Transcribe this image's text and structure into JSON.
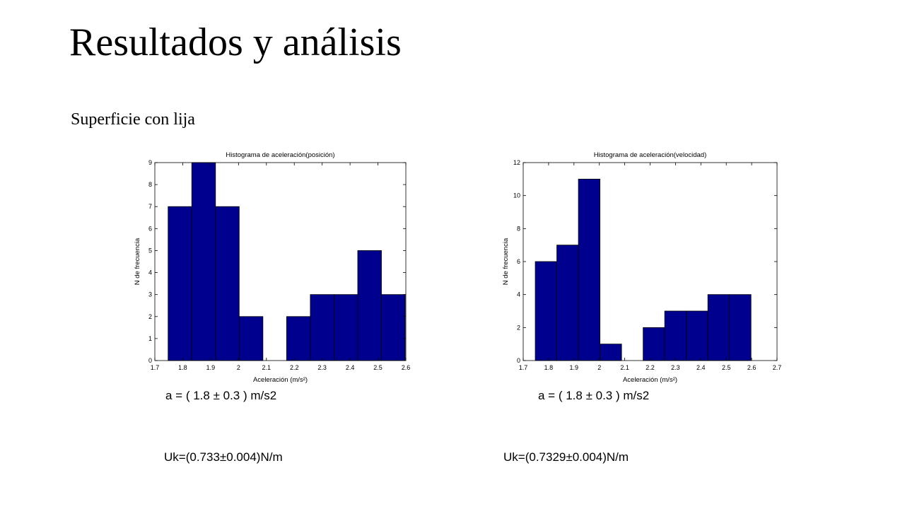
{
  "slide": {
    "title": "Resultados y análisis",
    "subtitle": "Superficie con lija"
  },
  "notes": {
    "accel_left": "a = ( 1.8 ± 0.3 ) m/s2",
    "accel_right": "a = ( 1.8 ± 0.3 ) m/s2",
    "uk_left": "Uk=(0.733±0.004)N/m",
    "uk_right": "Uk=(0.7329±0.004)N/m"
  },
  "colors": {
    "bar_fill": "#00008f",
    "bar_edge": "#000000"
  },
  "chart_data": [
    {
      "type": "bar",
      "title": "Histograma de aceleración(posición)",
      "xlabel": "Aceleración (m/s²)",
      "ylabel": "N de frecuencia",
      "xlim": [
        1.7,
        2.6
      ],
      "ylim": [
        0,
        9
      ],
      "xticks": [
        "1.7",
        "1.8",
        "1.9",
        "2",
        "2.1",
        "2.2",
        "2.3",
        "2.4",
        "2.5",
        "2.6"
      ],
      "yticks": [
        "0",
        "1",
        "2",
        "3",
        "4",
        "5",
        "6",
        "7",
        "8",
        "9"
      ],
      "bin_centers": [
        1.79,
        1.875,
        1.96,
        2.045,
        2.13,
        2.215,
        2.3,
        2.385,
        2.47,
        2.555
      ],
      "bin_width": 0.085,
      "values": [
        7,
        9,
        7,
        2,
        0,
        2,
        3,
        3,
        5,
        3
      ]
    },
    {
      "type": "bar",
      "title": "Histograma de aceleración(velocidad)",
      "xlabel": "Aceleración (m/s²)",
      "ylabel": "N de frecuencia",
      "xlim": [
        1.7,
        2.7
      ],
      "ylim": [
        0,
        12
      ],
      "xticks": [
        "1.7",
        "1.8",
        "1.9",
        "2",
        "2.1",
        "2.2",
        "2.3",
        "2.4",
        "2.5",
        "2.6",
        "2.7"
      ],
      "yticks": [
        "0",
        "2",
        "4",
        "6",
        "8",
        "10",
        "12"
      ],
      "bin_centers": [
        1.79,
        1.875,
        1.96,
        2.045,
        2.13,
        2.215,
        2.3,
        2.385,
        2.47,
        2.555
      ],
      "bin_width": 0.085,
      "values": [
        6,
        7,
        11,
        1,
        0,
        2,
        3,
        3,
        4,
        4
      ]
    }
  ]
}
